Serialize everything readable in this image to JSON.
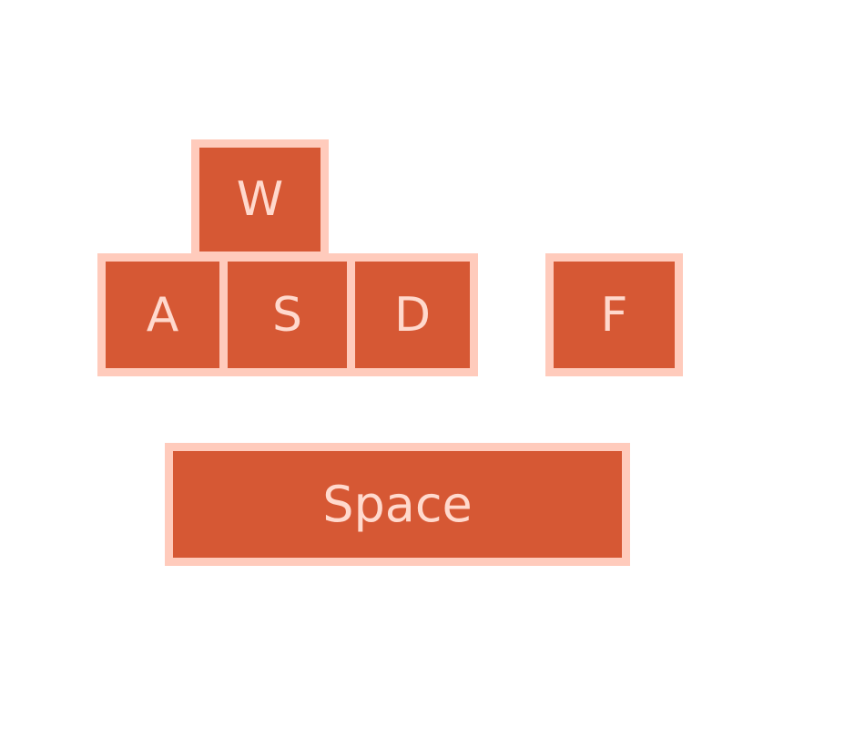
{
  "keys": {
    "w": "W",
    "a": "A",
    "s": "S",
    "d": "D",
    "f": "F",
    "space": "Space"
  },
  "colors": {
    "key_fill": "#d65834",
    "key_border": "#ffcbbc",
    "key_text": "#ffd9cd"
  }
}
